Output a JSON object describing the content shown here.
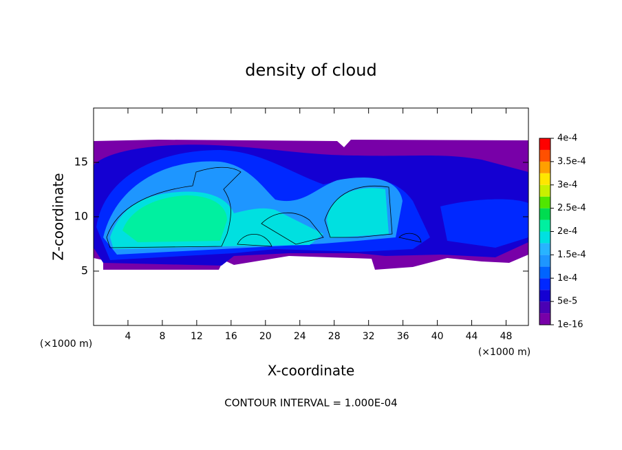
{
  "chart_data": {
    "type": "contour",
    "title": "density of cloud",
    "x_label": "X-coordinate",
    "y_label": "Z-coordinate",
    "x_unit": "(×1000 m)",
    "y_unit": "(×1000 m)",
    "footer": "CONTOUR INTERVAL = 1.000E-04",
    "xlim": [
      0,
      50.6
    ],
    "xticks": [
      4,
      8,
      12,
      16,
      20,
      24,
      28,
      32,
      36,
      40,
      44,
      48
    ],
    "ylim": [
      0,
      20
    ],
    "yticks": [
      5,
      10,
      15
    ],
    "colorbar": {
      "clim": [
        1e-16,
        0.0004
      ],
      "levels": [
        1e-16,
        2.5e-05,
        5e-05,
        7.5e-05,
        0.0001,
        0.000125,
        0.00015,
        0.000175,
        0.0002,
        0.000225,
        0.00025,
        0.000275,
        0.0003,
        0.000325,
        0.00035,
        0.000375,
        0.0004
      ],
      "colors": [
        "#7800a8",
        "#4a00b4",
        "#1400d2",
        "#0028ff",
        "#0064ff",
        "#1e96ff",
        "#28b4ff",
        "#00e0e0",
        "#00f0a0",
        "#00dc50",
        "#50e600",
        "#c8f000",
        "#ffe600",
        "#ffa000",
        "#ff5000",
        "#ff0000",
        "#ff7070"
      ],
      "ticks": [
        {
          "value": 1e-16,
          "label": "1e-16"
        },
        {
          "value": 5e-05,
          "label": "5e-5"
        },
        {
          "value": 0.0001,
          "label": "1e-4"
        },
        {
          "value": 0.00015,
          "label": "1.5e-4"
        },
        {
          "value": 0.0002,
          "label": "2e-4"
        },
        {
          "value": 0.00025,
          "label": "2.5e-4"
        },
        {
          "value": 0.0003,
          "label": "3e-4"
        },
        {
          "value": 0.00035,
          "label": "3.5e-4"
        },
        {
          "value": 0.0004,
          "label": "4e-4"
        }
      ]
    }
  }
}
